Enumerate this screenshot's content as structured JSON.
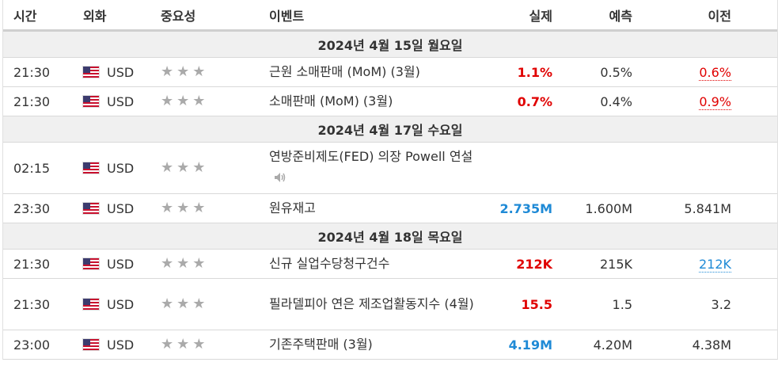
{
  "header": {
    "time": "시간",
    "currency": "외화",
    "importance": "중요성",
    "event": "이벤트",
    "actual": "실제",
    "forecast": "예측",
    "previous": "이전"
  },
  "colors": {
    "beat": "#e00000",
    "miss": "#1f8ad6",
    "star": "#aaaaaa"
  },
  "groups": [
    {
      "date": "2024년 4월 15일 월요일",
      "rows": [
        {
          "time": "21:30",
          "currency": "USD",
          "stars": 3,
          "event": "근원 소매판매 (MoM) (3월)",
          "actual": "1.1%",
          "actual_color": "red",
          "forecast": "0.5%",
          "previous": "0.6%",
          "previous_style": "red"
        },
        {
          "time": "21:30",
          "currency": "USD",
          "stars": 3,
          "event": "소매판매 (MoM) (3월)",
          "actual": "0.7%",
          "actual_color": "red",
          "forecast": "0.4%",
          "previous": "0.9%",
          "previous_style": "red"
        }
      ]
    },
    {
      "date": "2024년 4월 17일 수요일",
      "rows": [
        {
          "time": "02:15",
          "currency": "USD",
          "stars": 3,
          "event": "연방준비제도(FED) 의장 Powell 연설",
          "actual": "",
          "actual_color": "",
          "forecast": "",
          "previous": "",
          "previous_style": "",
          "speech_icon": "speaker-icon"
        },
        {
          "time": "23:30",
          "currency": "USD",
          "stars": 3,
          "event": "원유재고",
          "actual": "2.735M",
          "actual_color": "blue",
          "forecast": "1.600M",
          "previous": "5.841M",
          "previous_style": ""
        }
      ]
    },
    {
      "date": "2024년 4월 18일 목요일",
      "rows": [
        {
          "time": "21:30",
          "currency": "USD",
          "stars": 3,
          "event": "신규 실업수당청구건수",
          "actual": "212K",
          "actual_color": "red",
          "forecast": "215K",
          "previous": "212K",
          "previous_style": "blue"
        },
        {
          "time": "21:30",
          "currency": "USD",
          "stars": 3,
          "event": "필라델피아 연은 제조업활동지수 (4월)",
          "actual": "15.5",
          "actual_color": "red",
          "forecast": "1.5",
          "previous": "3.2",
          "previous_style": ""
        },
        {
          "time": "23:00",
          "currency": "USD",
          "stars": 3,
          "event": "기존주택판매 (3월)",
          "actual": "4.19M",
          "actual_color": "blue",
          "forecast": "4.20M",
          "previous": "4.38M",
          "previous_style": ""
        }
      ]
    }
  ]
}
